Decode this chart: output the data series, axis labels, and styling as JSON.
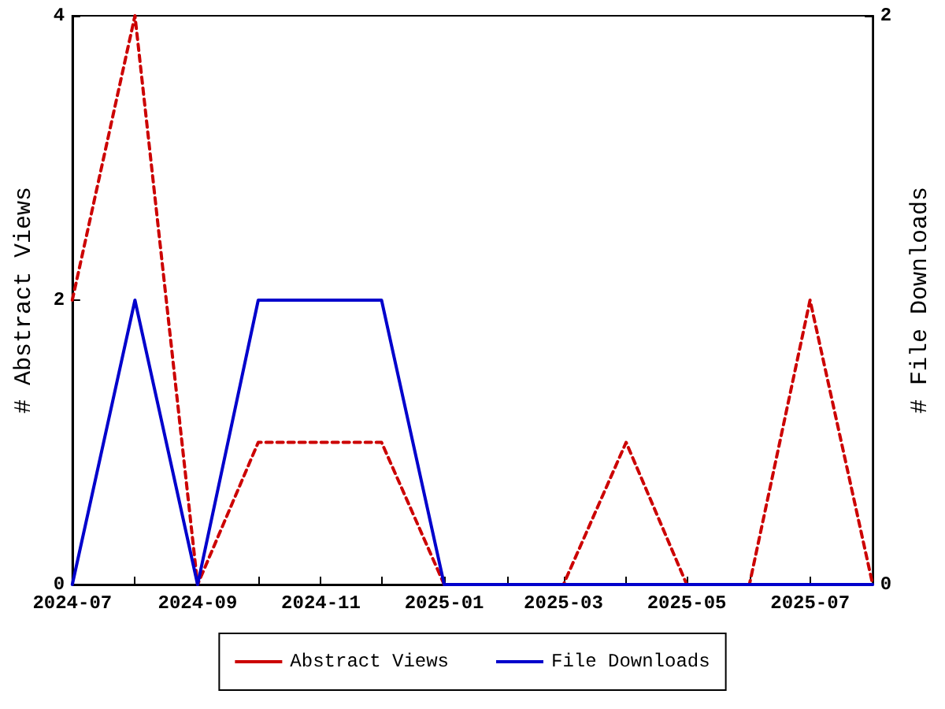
{
  "chart_data": {
    "type": "line",
    "ylabel": "# Abstract Views",
    "y2label": "# File Downloads",
    "x": [
      "2024-07",
      "2024-08",
      "2024-09",
      "2024-10",
      "2024-11",
      "2024-12",
      "2025-01",
      "2025-02",
      "2025-03",
      "2025-04",
      "2025-05",
      "2025-06",
      "2025-07",
      "2025-08"
    ],
    "series": [
      {
        "name": "Abstract Views",
        "color": "#cc0000",
        "line_style": "dashed",
        "values": [
          2,
          4,
          0,
          1,
          1,
          1,
          0,
          0,
          0,
          1,
          0,
          0,
          2,
          0
        ]
      },
      {
        "name": "File Downloads",
        "color": "#0000cc",
        "line_style": "solid",
        "axis": "y2",
        "values": [
          0,
          1,
          0,
          1,
          1,
          1,
          0,
          0,
          0,
          0,
          0,
          0,
          0,
          0
        ]
      }
    ],
    "xlim": [
      "2024-07",
      "2025-08"
    ],
    "xticks": [
      {
        "value": "2024-07",
        "label": "2024-07"
      },
      {
        "value": "2024-08",
        "label": null
      },
      {
        "value": "2024-09",
        "label": "2024-09"
      },
      {
        "value": "2024-10",
        "label": null
      },
      {
        "value": "2024-11",
        "label": "2024-11"
      },
      {
        "value": "2024-12",
        "label": null
      },
      {
        "value": "2025-01",
        "label": "2025-01"
      },
      {
        "value": "2025-02",
        "label": null
      },
      {
        "value": "2025-03",
        "label": "2025-03"
      },
      {
        "value": "2025-04",
        "label": null
      },
      {
        "value": "2025-05",
        "label": "2025-05"
      },
      {
        "value": "2025-06",
        "label": null
      },
      {
        "value": "2025-07",
        "label": "2025-07"
      },
      {
        "value": "2025-08",
        "label": null
      }
    ],
    "ylim": [
      0,
      4
    ],
    "yticks": [
      0,
      2,
      4
    ],
    "y2lim": [
      0,
      2
    ],
    "y2ticks": [
      0,
      2
    ],
    "grid": false,
    "legend": "bottom",
    "marker": "none"
  }
}
